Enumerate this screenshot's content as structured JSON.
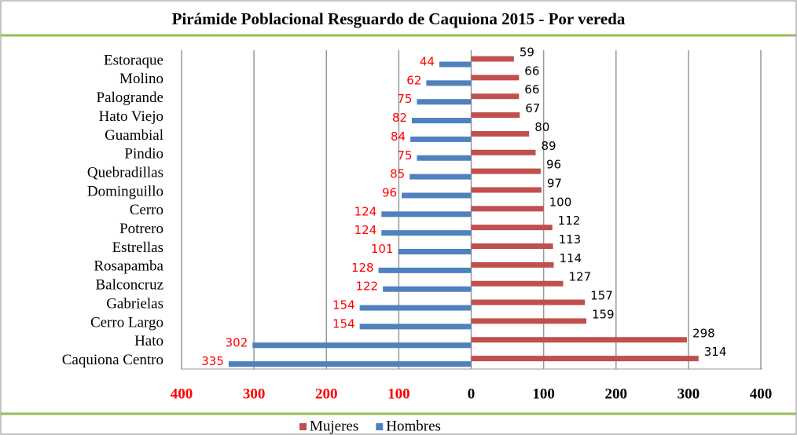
{
  "chart_data": {
    "type": "pyramid",
    "title": "Pirámide Poblacional Resguardo de Caquiona 2015 - Por vereda",
    "categories": [
      "Estoraque",
      "Molino",
      "Palogrande",
      "Hato Viejo",
      "Guambial",
      "Pindio",
      "Quebradillas",
      "Dominguillo",
      "Cerro",
      "Potrero",
      "Estrellas",
      "Rosapamba",
      "Balconcruz",
      "Gabrielas",
      "Cerro Largo",
      "Hato",
      "Caquiona Centro"
    ],
    "series": [
      {
        "name": "Mujeres",
        "color": "#c0504d",
        "values": [
          59,
          66,
          66,
          67,
          80,
          89,
          96,
          97,
          100,
          112,
          113,
          114,
          127,
          157,
          159,
          298,
          314
        ]
      },
      {
        "name": "Hombres",
        "color": "#4f81bd",
        "values": [
          -44,
          -62,
          -75,
          -82,
          -84,
          -75,
          -85,
          -96,
          -124,
          -124,
          -101,
          -128,
          -122,
          -154,
          -154,
          -302,
          -335
        ],
        "value_labels": [
          "44",
          "62",
          "75",
          "82",
          "84",
          "75",
          "85",
          "96",
          "124",
          "124",
          "101",
          "128",
          "122",
          "154",
          "154",
          "302",
          "335"
        ]
      }
    ],
    "xlim": [
      -400,
      400
    ],
    "xticks": [
      {
        "value": -400,
        "label": "400"
      },
      {
        "value": -300,
        "label": "300"
      },
      {
        "value": -200,
        "label": "200"
      },
      {
        "value": -100,
        "label": "100"
      },
      0,
      100,
      200,
      300,
      400
    ],
    "grid": true,
    "legend": "bottom"
  }
}
